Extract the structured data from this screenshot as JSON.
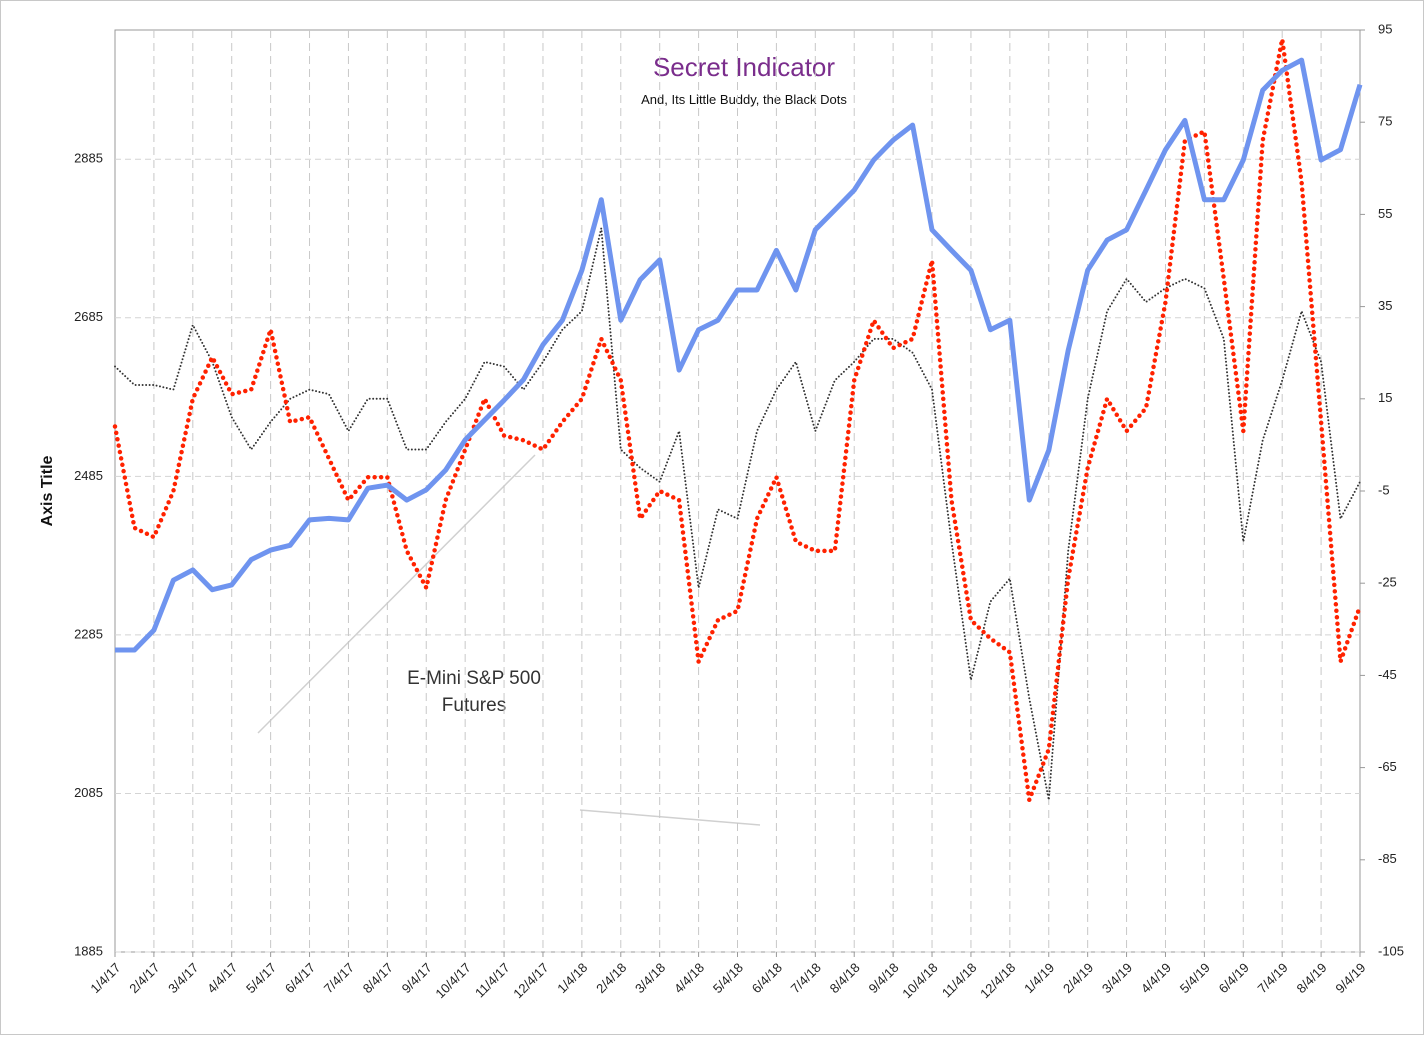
{
  "chart_data": {
    "type": "line",
    "title": "Secret Indicator",
    "subtitle": "And, Its Little Buddy, the Black Dots",
    "ylabel": "Axis Title",
    "annotation": [
      "E-Mini S&P 500",
      "Futures"
    ],
    "categories": [
      "1/4/17",
      null,
      "2/4/17",
      null,
      "3/4/17",
      null,
      "4/4/17",
      null,
      "5/4/17",
      null,
      "6/4/17",
      null,
      "7/4/17",
      null,
      "8/4/17",
      null,
      "9/4/17",
      null,
      "10/4/17",
      null,
      "11/4/17",
      null,
      "12/4/17",
      null,
      "1/4/18",
      null,
      "2/4/18",
      null,
      "3/4/18",
      null,
      "4/4/18",
      null,
      "5/4/18",
      null,
      "6/4/18",
      null,
      "7/4/18",
      null,
      "8/4/18",
      null,
      "9/4/18",
      null,
      "10/4/18",
      null,
      "11/4/18",
      null,
      "12/4/18",
      null,
      "1/4/19",
      null,
      "2/4/19",
      null,
      "3/4/19",
      null,
      "4/4/19",
      null,
      "5/4/19",
      null,
      "6/4/19",
      null,
      "7/4/19",
      null,
      "8/4/19",
      null,
      "9/4/19"
    ],
    "ylim": [
      1885,
      3048
    ],
    "yticks": [
      1885,
      2085,
      2285,
      2485,
      2685,
      2885
    ],
    "y2lim": [
      -105,
      95
    ],
    "y2ticks": [
      -105,
      -85,
      -65,
      -45,
      -25,
      -5,
      15,
      35,
      55,
      75,
      95
    ],
    "grid": true,
    "series": [
      {
        "color": "#6f94ef",
        "style": "solid",
        "values": [
          2266,
          2266,
          2291,
          2354,
          2367,
          2342,
          2348,
          2380,
          2392,
          2398,
          2430,
          2432,
          2430,
          2470,
          2474,
          2455,
          2468,
          2493,
          2531,
          2556,
          2581,
          2607,
          2651,
          2682,
          2745,
          2834,
          2682,
          2733,
          2758,
          2619,
          2670,
          2682,
          2720,
          2720,
          2770,
          2720,
          2796,
          2821,
          2846,
          2884,
          2909,
          2928,
          2796,
          2770,
          2745,
          2670,
          2682,
          2455,
          2518,
          2644,
          2745,
          2783,
          2796,
          2846,
          2897,
          2934,
          2834,
          2834,
          2884,
          2972,
          2997,
          3010,
          2884,
          2897,
          2979
        ]
      },
      {
        "color": "#ff2200",
        "style": "dots",
        "axis": "y2",
        "values": [
          9,
          -13,
          -15,
          -5,
          15,
          24,
          16,
          17,
          30,
          10,
          11,
          2,
          -7,
          -2,
          -2,
          -18,
          -26,
          -7,
          4,
          15,
          7,
          6,
          4,
          10,
          15,
          28,
          19,
          -11,
          -5,
          -7,
          -42,
          -33,
          -31,
          -11,
          -2,
          -16,
          -18,
          -18,
          19,
          32,
          26,
          28,
          45,
          -7,
          -33,
          -37,
          -40,
          -72,
          -61,
          -24,
          0,
          15,
          8,
          13,
          36,
          71,
          73,
          41,
          8,
          71,
          93,
          62,
          10,
          -42,
          -30
        ]
      },
      {
        "color": "#333333",
        "style": "fine-dots",
        "axis": "y2",
        "values": [
          22,
          18,
          18,
          17,
          31,
          23,
          11,
          4,
          10,
          15,
          17,
          16,
          8,
          15,
          15,
          4,
          4,
          10,
          15,
          23,
          22,
          17,
          23,
          30,
          34,
          52,
          4,
          0,
          -3,
          8,
          -26,
          -9,
          -11,
          8,
          17,
          23,
          8,
          19,
          23,
          28,
          28,
          25,
          17,
          -16,
          -46,
          -29,
          -24,
          -50,
          -72,
          -18,
          15,
          34,
          41,
          36,
          39,
          41,
          39,
          28,
          -16,
          6,
          19,
          34,
          23,
          -11,
          -3
        ]
      }
    ]
  }
}
